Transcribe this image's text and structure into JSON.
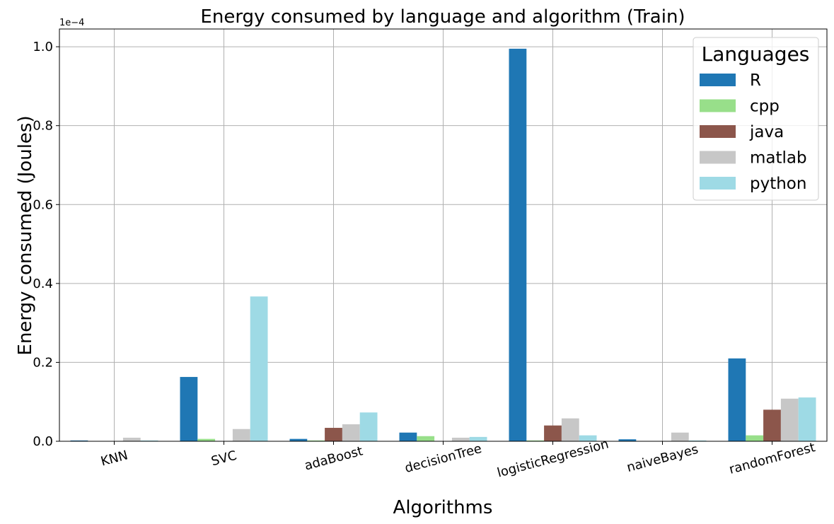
{
  "chart_data": {
    "type": "bar",
    "title": "Energy consumed by language and algorithm (Train)",
    "xlabel": "Algorithms",
    "ylabel": "Energy consumed (Joules)",
    "y_exponent_label": "1e−4",
    "y_scale": 0.0001,
    "ylim": [
      0,
      1.045
    ],
    "yticks": [
      "0.0",
      "0.2",
      "0.4",
      "0.6",
      "0.8",
      "1.0"
    ],
    "grid": true,
    "legend": {
      "title": "Languages",
      "placement": "top-right"
    },
    "categories": [
      "KNN",
      "SVC",
      "adaBoost",
      "decisionTree",
      "logisticRegression",
      "naiveBayes",
      "randomForest"
    ],
    "series": [
      {
        "name": "R",
        "color": "#1f77b4",
        "values": [
          0.002,
          0.163,
          0.006,
          0.022,
          0.995,
          0.005,
          0.21
        ]
      },
      {
        "name": "cpp",
        "color": "#98df8a",
        "values": [
          0.0,
          0.006,
          0.002,
          0.013,
          0.002,
          0.0,
          0.015
        ]
      },
      {
        "name": "java",
        "color": "#8c564b",
        "values": [
          0.0,
          0.0,
          0.034,
          0.0,
          0.04,
          0.0,
          0.08
        ]
      },
      {
        "name": "matlab",
        "color": "#c7c7c7",
        "values": [
          0.009,
          0.031,
          0.043,
          0.009,
          0.058,
          0.022,
          0.108
        ]
      },
      {
        "name": "python",
        "color": "#9edae5",
        "values": [
          0.002,
          0.367,
          0.073,
          0.011,
          0.015,
          0.002,
          0.111
        ]
      }
    ]
  }
}
